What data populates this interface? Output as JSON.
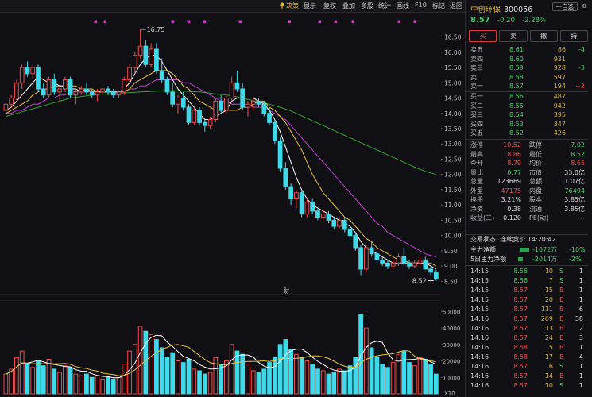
{
  "toolbar": {
    "items": [
      "决策",
      "显示",
      "复权",
      "叠加",
      "多股",
      "统计",
      "画线",
      "F10",
      "标记",
      "返回"
    ],
    "active_index": 0
  },
  "stock": {
    "name": "中创环保",
    "code": "300056",
    "watch_label": "一自选",
    "close_label": "⊗",
    "price": "8.57",
    "change": "-0.20",
    "change_pct": "-2.28%"
  },
  "trade_buttons": [
    "买",
    "卖",
    "撤",
    "持"
  ],
  "order_book": {
    "asks": [
      {
        "label": "卖五",
        "price": "8.61",
        "vol": "86",
        "delta": "-4"
      },
      {
        "label": "卖四",
        "price": "8.60",
        "vol": "931",
        "delta": ""
      },
      {
        "label": "卖三",
        "price": "8.59",
        "vol": "928",
        "delta": "-3"
      },
      {
        "label": "卖二",
        "price": "8.58",
        "vol": "597",
        "delta": ""
      },
      {
        "label": "卖一",
        "price": "8.57",
        "vol": "194",
        "delta": "+2"
      }
    ],
    "bids": [
      {
        "label": "买一",
        "price": "8.56",
        "vol": "487",
        "delta": ""
      },
      {
        "label": "买二",
        "price": "8.55",
        "vol": "942",
        "delta": ""
      },
      {
        "label": "买三",
        "price": "8.54",
        "vol": "395",
        "delta": ""
      },
      {
        "label": "买四",
        "price": "8.53",
        "vol": "347",
        "delta": ""
      },
      {
        "label": "买五",
        "price": "8.52",
        "vol": "426",
        "delta": ""
      }
    ]
  },
  "stats": [
    {
      "l1": "涨停",
      "v1": "10.52",
      "c1": "red",
      "l2": "跌停",
      "v2": "7.02",
      "c2": "green"
    },
    {
      "l1": "最高",
      "v1": "8.86",
      "c1": "red",
      "l2": "最低",
      "v2": "8.52",
      "c2": "green"
    },
    {
      "l1": "今开",
      "v1": "8.79",
      "c1": "red",
      "l2": "均价",
      "v2": "8.65",
      "c2": "red"
    },
    {
      "l1": "量比",
      "v1": "0.77",
      "c1": "green",
      "l2": "市值",
      "v2": "33.0亿",
      "c2": "white"
    },
    {
      "l1": "总量",
      "v1": "123669",
      "c1": "white",
      "l2": "总额",
      "v2": "1.07亿",
      "c2": "white"
    },
    {
      "l1": "外盘",
      "v1": "47175",
      "c1": "red",
      "l2": "内盘",
      "v2": "76494",
      "c2": "green"
    },
    {
      "l1": "换手",
      "v1": "3.21%",
      "c1": "white",
      "l2": "股本",
      "v2": "3.85亿",
      "c2": "white"
    },
    {
      "l1": "净资",
      "v1": "0.38",
      "c1": "white",
      "l2": "流通",
      "v2": "3.85亿",
      "c2": "white"
    },
    {
      "l1": "收益(三)",
      "v1": "-0.120",
      "c1": "white",
      "l2": "PE(动)",
      "v2": "--",
      "c2": "white"
    }
  ],
  "status": {
    "label": "交易状态: 连续竞价 14:20:42"
  },
  "fund_flow": [
    {
      "label": "主力净额",
      "value": "-1072万",
      "pct": "-10%"
    },
    {
      "label": "5日主力净额",
      "value": "-2014万",
      "pct": "-2%"
    }
  ],
  "ticks": [
    {
      "time": "14:15",
      "price": "8.56",
      "vol": "10",
      "side": "S",
      "n": "1"
    },
    {
      "time": "14:15",
      "price": "8.56",
      "vol": "7",
      "side": "S",
      "n": "1"
    },
    {
      "time": "14:15",
      "price": "8.57",
      "vol": "15",
      "side": "B",
      "n": "1"
    },
    {
      "time": "14:15",
      "price": "8.57",
      "vol": "20",
      "side": "B",
      "n": "1"
    },
    {
      "time": "14:15",
      "price": "8.57",
      "vol": "111",
      "side": "B",
      "n": "6"
    },
    {
      "time": "14:16",
      "price": "8.57",
      "vol": "269",
      "side": "B",
      "n": "38"
    },
    {
      "time": "14:16",
      "price": "8.57",
      "vol": "13",
      "side": "B",
      "n": "2"
    },
    {
      "time": "14:16",
      "price": "8.57",
      "vol": "24",
      "side": "B",
      "n": "3"
    },
    {
      "time": "14:16",
      "price": "8.58",
      "vol": "5",
      "side": "B",
      "n": "1"
    },
    {
      "time": "14:16",
      "price": "8.58",
      "vol": "17",
      "side": "B",
      "n": "4"
    },
    {
      "time": "14:16",
      "price": "8.57",
      "vol": "6",
      "side": "S",
      "n": "1"
    },
    {
      "time": "14:16",
      "price": "8.57",
      "vol": "14",
      "side": "B",
      "n": "1"
    },
    {
      "time": "14:16",
      "price": "8.57",
      "vol": "10",
      "side": "S",
      "n": "1"
    }
  ],
  "chart_data": {
    "type": "candlestick",
    "price_axis_ticks": [
      "16.50",
      "16.00",
      "15.50",
      "15.00",
      "14.50",
      "14.00",
      "13.50",
      "13.00",
      "12.50",
      "12.00",
      "11.50",
      "11.00",
      "10.50",
      "10.00",
      "9.50",
      "9.00",
      "8.50"
    ],
    "price_range": [
      8.3,
      16.75
    ],
    "high_marker": "16.75",
    "low_marker": "8.52",
    "event_marker": "财",
    "volume_axis_ticks": [
      "50000",
      "40000",
      "30000",
      "20000",
      "10000"
    ],
    "volume_unit": "X10",
    "volume_range": [
      0,
      55000
    ],
    "colors": {
      "up": "#ef4a4a",
      "down": "#3fd9e9",
      "ma5": "#ffffff",
      "ma10": "#e8c23a",
      "ma20": "#c040d0",
      "ma60": "#30a030"
    },
    "candles": [
      [
        14.1,
        14.3,
        14.0,
        14.3
      ],
      [
        14.3,
        14.6,
        14.2,
        14.5
      ],
      [
        14.5,
        15.1,
        14.4,
        15.0
      ],
      [
        15.0,
        15.6,
        14.8,
        15.5
      ],
      [
        15.5,
        15.7,
        15.2,
        15.3
      ],
      [
        15.3,
        15.6,
        15.1,
        15.5
      ],
      [
        15.5,
        15.6,
        14.7,
        14.8
      ],
      [
        14.8,
        15.0,
        14.5,
        14.6
      ],
      [
        14.6,
        15.2,
        14.5,
        15.1
      ],
      [
        15.1,
        15.3,
        14.6,
        14.7
      ],
      [
        14.7,
        14.9,
        14.4,
        14.8
      ],
      [
        14.8,
        15.2,
        14.7,
        15.1
      ],
      [
        15.1,
        15.2,
        14.5,
        14.6
      ],
      [
        14.6,
        14.8,
        14.3,
        14.7
      ],
      [
        14.7,
        14.9,
        14.6,
        14.8
      ],
      [
        14.8,
        15.0,
        14.6,
        14.7
      ],
      [
        14.7,
        14.8,
        14.5,
        14.6
      ],
      [
        14.6,
        14.8,
        14.4,
        14.7
      ],
      [
        14.7,
        14.8,
        14.6,
        14.8
      ],
      [
        14.8,
        14.9,
        14.6,
        14.7
      ],
      [
        14.7,
        14.8,
        14.5,
        14.6
      ],
      [
        14.6,
        14.7,
        14.5,
        14.7
      ],
      [
        14.7,
        15.2,
        14.6,
        15.1
      ],
      [
        15.1,
        15.6,
        15.0,
        15.5
      ],
      [
        15.5,
        16.0,
        15.3,
        15.9
      ],
      [
        15.9,
        16.75,
        15.8,
        16.2
      ],
      [
        16.2,
        16.4,
        15.5,
        15.6
      ],
      [
        15.6,
        16.3,
        15.5,
        16.1
      ],
      [
        16.1,
        16.3,
        15.3,
        15.4
      ],
      [
        15.4,
        15.8,
        15.0,
        15.1
      ],
      [
        15.1,
        15.2,
        14.6,
        14.7
      ],
      [
        14.7,
        15.0,
        14.2,
        14.3
      ],
      [
        14.3,
        14.6,
        14.0,
        14.5
      ],
      [
        14.5,
        14.7,
        14.1,
        14.2
      ],
      [
        14.2,
        14.3,
        13.6,
        13.7
      ],
      [
        13.7,
        14.2,
        13.6,
        14.1
      ],
      [
        14.1,
        14.2,
        13.6,
        13.7
      ],
      [
        13.7,
        13.8,
        13.4,
        13.6
      ],
      [
        13.6,
        13.9,
        13.5,
        13.8
      ],
      [
        13.8,
        14.5,
        13.7,
        14.4
      ],
      [
        14.4,
        14.6,
        14.0,
        14.1
      ],
      [
        14.1,
        14.6,
        14.0,
        14.5
      ],
      [
        14.5,
        15.2,
        14.4,
        15.0
      ],
      [
        15.0,
        15.4,
        14.7,
        14.8
      ],
      [
        14.8,
        15.0,
        14.1,
        14.2
      ],
      [
        14.2,
        14.4,
        13.9,
        14.3
      ],
      [
        14.3,
        14.5,
        14.1,
        14.4
      ],
      [
        14.4,
        14.5,
        14.2,
        14.3
      ],
      [
        14.3,
        14.4,
        13.9,
        14.0
      ],
      [
        14.0,
        14.2,
        13.6,
        13.7
      ],
      [
        13.7,
        13.8,
        13.0,
        13.1
      ],
      [
        13.1,
        13.2,
        12.1,
        12.2
      ],
      [
        12.2,
        12.4,
        11.5,
        11.6
      ],
      [
        11.6,
        11.7,
        11.0,
        11.2
      ],
      [
        11.2,
        11.5,
        10.9,
        11.4
      ],
      [
        11.4,
        11.5,
        10.6,
        10.7
      ],
      [
        10.7,
        11.2,
        10.6,
        11.1
      ],
      [
        11.1,
        11.2,
        10.7,
        10.8
      ],
      [
        10.8,
        10.9,
        10.5,
        10.6
      ],
      [
        10.6,
        10.8,
        10.5,
        10.7
      ],
      [
        10.7,
        10.8,
        10.4,
        10.5
      ],
      [
        10.5,
        10.6,
        10.2,
        10.3
      ],
      [
        10.3,
        10.6,
        10.2,
        10.5
      ],
      [
        10.5,
        10.6,
        10.1,
        10.2
      ],
      [
        10.2,
        10.3,
        9.9,
        10.0
      ],
      [
        10.0,
        10.1,
        9.5,
        9.6
      ],
      [
        9.6,
        9.7,
        8.7,
        8.9
      ],
      [
        8.9,
        9.7,
        8.8,
        9.6
      ],
      [
        9.6,
        9.8,
        9.3,
        9.4
      ],
      [
        9.4,
        9.5,
        9.1,
        9.2
      ],
      [
        9.2,
        9.3,
        9.0,
        9.1
      ],
      [
        9.1,
        9.2,
        8.9,
        9.0
      ],
      [
        9.0,
        9.2,
        8.9,
        9.1
      ],
      [
        9.1,
        9.4,
        9.0,
        9.3
      ],
      [
        9.3,
        9.6,
        9.0,
        9.1
      ],
      [
        9.1,
        9.2,
        8.9,
        9.0
      ],
      [
        9.0,
        9.2,
        8.95,
        9.1
      ],
      [
        9.1,
        9.3,
        9.0,
        9.2
      ],
      [
        9.2,
        9.3,
        8.9,
        8.9
      ],
      [
        8.9,
        9.0,
        8.7,
        8.8
      ],
      [
        8.8,
        8.86,
        8.52,
        8.57
      ]
    ],
    "volumes": [
      12000,
      15000,
      22000,
      26000,
      18000,
      16000,
      20000,
      17000,
      21000,
      15000,
      13000,
      17000,
      16000,
      12000,
      11000,
      12000,
      10000,
      11000,
      9000,
      10000,
      9000,
      10000,
      18000,
      26000,
      30000,
      41000,
      38000,
      36000,
      33000,
      28000,
      22000,
      25000,
      20000,
      19000,
      21000,
      15000,
      14000,
      12000,
      13000,
      22000,
      18000,
      20000,
      30000,
      26000,
      24000,
      18000,
      14000,
      13000,
      15000,
      19000,
      22000,
      30000,
      33000,
      27000,
      24000,
      22000,
      20000,
      18000,
      15000,
      14000,
      12000,
      13000,
      15000,
      14000,
      17000,
      22000,
      48000,
      40000,
      28000,
      22000,
      18000,
      16000,
      19000,
      24000,
      26000,
      19000,
      17000,
      22000,
      21000,
      18000,
      12000
    ],
    "ma5": [
      14.1,
      14.2,
      14.4,
      14.6,
      14.8,
      15.0,
      15.2,
      15.1,
      15.0,
      15.0,
      14.9,
      14.9,
      14.8,
      14.8,
      14.7,
      14.8,
      14.7,
      14.7,
      14.7,
      14.7,
      14.7,
      14.7,
      14.8,
      15.0,
      15.3,
      15.6,
      15.8,
      15.9,
      15.9,
      15.7,
      15.4,
      15.1,
      14.8,
      14.6,
      14.4,
      14.2,
      14.0,
      13.8,
      13.8,
      13.9,
      14.0,
      14.1,
      14.4,
      14.5,
      14.5,
      14.5,
      14.5,
      14.4,
      14.3,
      14.1,
      13.8,
      13.4,
      12.9,
      12.4,
      11.9,
      11.5,
      11.2,
      11.0,
      10.9,
      10.8,
      10.7,
      10.6,
      10.5,
      10.4,
      10.3,
      10.1,
      9.8,
      9.6,
      9.5,
      9.4,
      9.3,
      9.2,
      9.1,
      9.1,
      9.1,
      9.1,
      9.1,
      9.1,
      9.1,
      9.0,
      8.9
    ],
    "ma10": [
      14.0,
      14.1,
      14.2,
      14.3,
      14.4,
      14.6,
      14.7,
      14.8,
      14.8,
      14.9,
      14.9,
      14.9,
      14.9,
      14.9,
      14.8,
      14.8,
      14.8,
      14.7,
      14.7,
      14.7,
      14.7,
      14.7,
      14.7,
      14.8,
      15.0,
      15.1,
      15.2,
      15.3,
      15.4,
      15.4,
      15.4,
      15.3,
      15.1,
      14.9,
      14.8,
      14.6,
      14.4,
      14.3,
      14.2,
      14.1,
      14.1,
      14.1,
      14.1,
      14.1,
      14.2,
      14.2,
      14.3,
      14.4,
      14.4,
      14.2,
      14.1,
      13.9,
      13.7,
      13.4,
      13.1,
      12.8,
      12.4,
      12.0,
      11.7,
      11.4,
      11.2,
      11.0,
      10.8,
      10.6,
      10.5,
      10.3,
      10.1,
      9.9,
      9.8,
      9.6,
      9.5,
      9.4,
      9.3,
      9.2,
      9.2,
      9.1,
      9.1,
      9.1,
      9.1,
      9.1,
      9.0
    ],
    "ma20": [
      14.0,
      14.0,
      14.1,
      14.1,
      14.2,
      14.3,
      14.3,
      14.4,
      14.5,
      14.5,
      14.6,
      14.6,
      14.7,
      14.7,
      14.7,
      14.7,
      14.7,
      14.7,
      14.7,
      14.7,
      14.7,
      14.7,
      14.7,
      14.8,
      14.8,
      14.9,
      14.9,
      15.0,
      15.1,
      15.1,
      15.1,
      15.1,
      15.1,
      15.0,
      15.0,
      14.9,
      14.8,
      14.7,
      14.6,
      14.5,
      14.4,
      14.4,
      14.3,
      14.3,
      14.3,
      14.3,
      14.2,
      14.2,
      14.2,
      14.1,
      14.0,
      13.9,
      13.8,
      13.6,
      13.4,
      13.2,
      13.0,
      12.8,
      12.6,
      12.4,
      12.2,
      12.0,
      11.8,
      11.6,
      11.4,
      11.2,
      11.0,
      10.8,
      10.6,
      10.4,
      10.3,
      10.1,
      10.0,
      9.9,
      9.8,
      9.7,
      9.6,
      9.5,
      9.4,
      9.35,
      9.3
    ],
    "ma60": [
      13.9,
      13.95,
      14.0,
      14.05,
      14.1,
      14.15,
      14.2,
      14.25,
      14.3,
      14.35,
      14.4,
      14.45,
      14.5,
      14.52,
      14.55,
      14.57,
      14.6,
      14.62,
      14.63,
      14.64,
      14.65,
      14.66,
      14.67,
      14.68,
      14.69,
      14.7,
      14.71,
      14.72,
      14.73,
      14.74,
      14.74,
      14.74,
      14.74,
      14.73,
      14.72,
      14.71,
      14.7,
      14.68,
      14.66,
      14.64,
      14.62,
      14.6,
      14.57,
      14.54,
      14.5,
      14.46,
      14.42,
      14.38,
      14.34,
      14.3,
      14.25,
      14.2,
      14.14,
      14.08,
      14.0,
      13.92,
      13.84,
      13.76,
      13.68,
      13.6,
      13.52,
      13.44,
      13.36,
      13.28,
      13.2,
      13.12,
      13.04,
      12.96,
      12.88,
      12.8,
      12.72,
      12.64,
      12.56,
      12.48,
      12.4,
      12.32,
      12.24,
      12.17,
      12.1,
      12.05,
      12.0
    ]
  }
}
